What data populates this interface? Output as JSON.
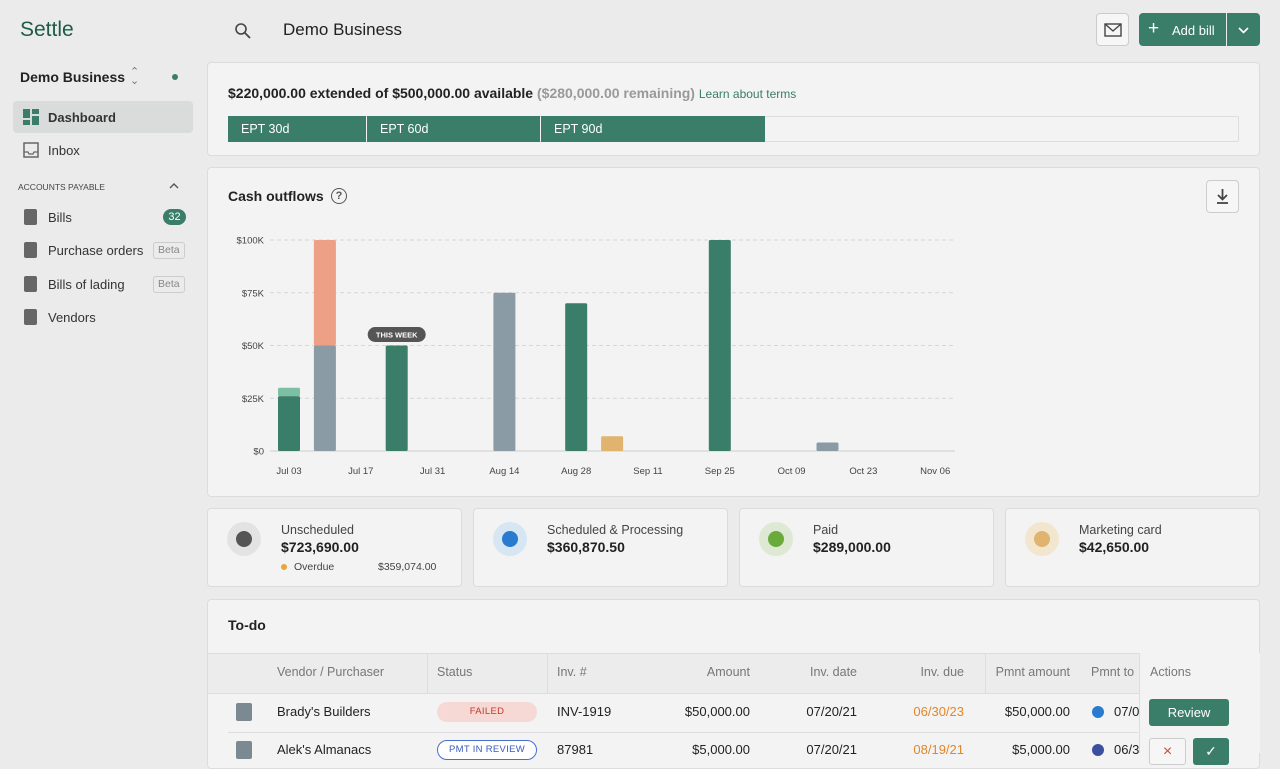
{
  "header": {
    "logo": "Settle",
    "business": "Demo Business",
    "add_bill": "Add bill"
  },
  "sidebar": {
    "business": "Demo Business",
    "nav": [
      "Dashboard",
      "Inbox"
    ],
    "section": "ACCOUNTS PAYABLE",
    "items": [
      {
        "label": "Bills",
        "badge": "32"
      },
      {
        "label": "Purchase orders",
        "tag": "Beta"
      },
      {
        "label": "Bills of lading",
        "tag": "Beta"
      },
      {
        "label": "Vendors"
      }
    ]
  },
  "credit": {
    "extended": "$220,000.00 extended of $500,000.00 available",
    "remaining": "($280,000.00 remaining)",
    "link": "Learn about terms",
    "terms": [
      "EPT 30d",
      "EPT 60d",
      "EPT 90d"
    ]
  },
  "cash_outflows": {
    "type": "bar",
    "title": "Cash outflows",
    "annotation": "THIS WEEK",
    "categories": [
      "Jul 03",
      null,
      "Jul 17",
      null,
      "Jul 31",
      null,
      "Aug 14",
      null,
      "Aug 28",
      null,
      "Sep 11",
      null,
      "Sep 25",
      null,
      "Oct 09",
      null,
      "Oct 23",
      null,
      "Nov 06"
    ],
    "series": [
      {
        "color": "#3a7d68",
        "values": [
          26000,
          0,
          0,
          50000,
          0,
          0,
          0,
          0,
          70000,
          0,
          0,
          0,
          100000,
          0,
          0,
          0,
          0,
          0,
          0
        ]
      },
      {
        "color": "#7dbfa5",
        "values": [
          4000,
          0,
          0,
          0,
          0,
          0,
          0,
          0,
          0,
          0,
          0,
          0,
          0,
          0,
          0,
          0,
          0,
          0,
          0
        ]
      },
      {
        "color": "#8a9ba5",
        "values": [
          0,
          50000,
          0,
          0,
          0,
          0,
          75000,
          0,
          0,
          0,
          0,
          0,
          0,
          0,
          0,
          4000,
          0,
          0,
          0
        ]
      },
      {
        "color": "#eea087",
        "values": [
          0,
          50000,
          0,
          0,
          0,
          0,
          0,
          0,
          0,
          0,
          0,
          0,
          0,
          0,
          0,
          0,
          0,
          0,
          0
        ]
      },
      {
        "color": "#e0b36e",
        "values": [
          0,
          0,
          0,
          0,
          0,
          0,
          0,
          0,
          0,
          7000,
          0,
          0,
          0,
          0,
          0,
          0,
          0,
          0,
          0
        ]
      }
    ],
    "ylim": [
      0,
      100000
    ],
    "yticks": [
      {
        "value": 0,
        "label": "$0"
      },
      {
        "value": 25000,
        "label": "$25K"
      },
      {
        "value": 50000,
        "label": "$50K"
      },
      {
        "value": 75000,
        "label": "$75K"
      },
      {
        "value": 100000,
        "label": "$100K"
      }
    ],
    "grid": true
  },
  "summary": [
    {
      "label": "Unscheduled",
      "amount": "$723,690.00",
      "sub_label": "Overdue",
      "sub_amount": "$359,074.00"
    },
    {
      "label": "Scheduled & Processing",
      "amount": "$360,870.50"
    },
    {
      "label": "Paid",
      "amount": "$289,000.00"
    },
    {
      "label": "Marketing card",
      "amount": "$42,650.00"
    }
  ],
  "todo": {
    "title": "To-do",
    "columns": [
      "Vendor / Purchaser",
      "Status",
      "Inv. #",
      "Amount",
      "Inv. date",
      "Inv. due",
      "Pmnt amount",
      "Pmnt to",
      "Actions"
    ],
    "rows": [
      [
        "Brady's Builders",
        "FAILED",
        "INV-1919",
        "$50,000.00",
        "07/20/21",
        "06/30/23",
        "$50,000.00",
        "07/0",
        "Review"
      ],
      [
        "Alek's Almanacs",
        "PMT IN REVIEW",
        "87981",
        "$5,000.00",
        "07/20/21",
        "08/19/21",
        "$5,000.00",
        "06/3"
      ]
    ]
  }
}
